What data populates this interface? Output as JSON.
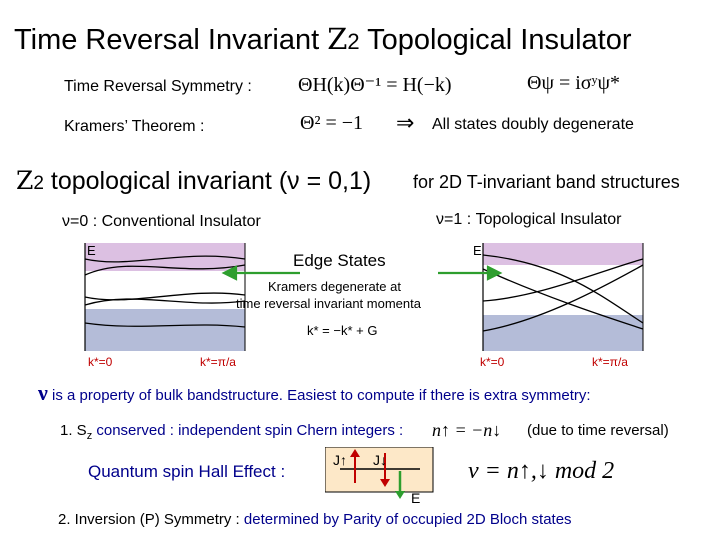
{
  "title": {
    "pre": "Time Reversal Invariant ",
    "z2": "Z",
    "z2sub": "2",
    "post": " Topological Insulator"
  },
  "symmetry": {
    "label": "Time Reversal Symmetry :",
    "eq1": "ΘH(k)Θ⁻¹ = H(−k)",
    "eq2": "Θψ = iσʸψ*"
  },
  "kramers": {
    "label": "Kramers’ Theorem :",
    "eq": "Θ² = −1",
    "arrow": "⇒",
    "result": "All states doubly degenerate"
  },
  "invariant": {
    "z2": "Z",
    "z2sub": "2",
    "text": " topological invariant (ν = 0,1)",
    "note": "for 2D T-invariant band structures"
  },
  "nu0": "ν=0 : Conventional Insulator",
  "nu1": "ν=1 : Topological Insulator",
  "plot": {
    "e_label": "E",
    "edge_states": "Edge States",
    "kramers_line1": "Kramers degenerate at",
    "kramers_line2": "time reversal invariant momenta",
    "kstar": "k* = −k* + G",
    "left_k0": "k*=0",
    "left_kpi": "k*=π/a",
    "right_k0": "k*=0",
    "right_kpi": "k*=π/a"
  },
  "bulk": {
    "nu": "ν",
    "text": " is a property of bulk bandstructure.  Easiest to compute if there is extra symmetry:"
  },
  "item1": {
    "prefix": "1.  S",
    "sub": "z",
    "text": " conserved : independent spin Chern integers :",
    "eq": "n↑ = −n↓",
    "note": "(due to time reversal)"
  },
  "qsh": {
    "label": "Quantum spin Hall Effect :",
    "j_up": "J↑",
    "j_down": "J↓",
    "e": "E",
    "formula": "ν = n↑,↓  mod 2"
  },
  "item2": {
    "prefix": "2.  Inversion (P) Symmetry :",
    "text": " determined by Parity of occupied 2D Bloch states"
  },
  "colors": {
    "conduction": "#dcc0e2",
    "valence": "#b4bcd8",
    "accent_blue": "#00008b",
    "accent_red": "#c00000"
  }
}
